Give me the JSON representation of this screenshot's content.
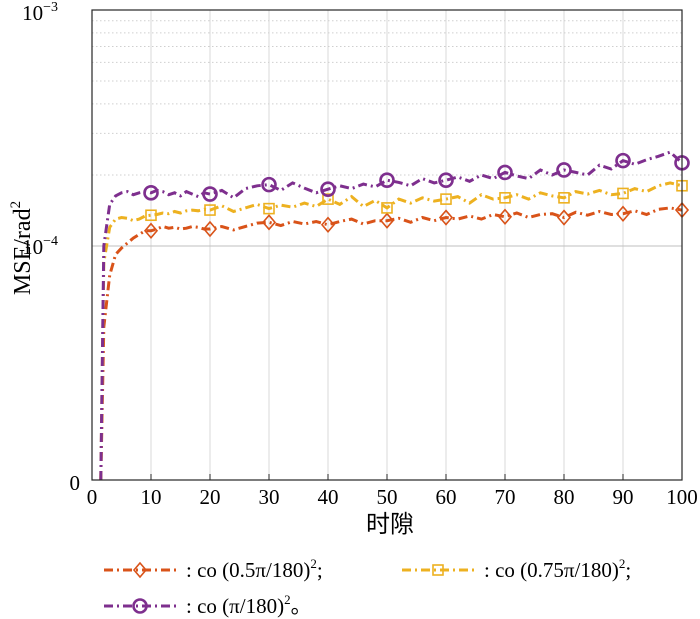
{
  "chart_data": {
    "type": "line",
    "xlabel": "时隙",
    "ylabel": "MSE/rad",
    "ylabel_sup": "2",
    "xlim": [
      0,
      100
    ],
    "ylim_labels": {
      "top_base": "10",
      "top_exp": "−3",
      "mid_base": "10",
      "mid_exp": "−4",
      "bottom": "0"
    },
    "x_ticks": [
      0,
      10,
      20,
      30,
      40,
      50,
      60,
      70,
      80,
      90,
      100
    ],
    "x_tick_labels": [
      "0",
      "10",
      "20",
      "30",
      "40",
      "50",
      "60",
      "70",
      "80",
      "90",
      "100"
    ],
    "grid": true,
    "series": [
      {
        "name": ": co (0.5π/180)",
        "name_sup": "2",
        "name_suffix": ";",
        "color": "#d95319",
        "marker": "diamond",
        "x": [
          1.5,
          2,
          3,
          4,
          5,
          6,
          7,
          8,
          9,
          10,
          11,
          12,
          13,
          14,
          15,
          16,
          17,
          18,
          19,
          20,
          22,
          24,
          26,
          28,
          30,
          32,
          34,
          36,
          38,
          40,
          42,
          44,
          46,
          48,
          50,
          52,
          54,
          56,
          58,
          60,
          62,
          64,
          66,
          68,
          70,
          72,
          74,
          76,
          78,
          80,
          82,
          84,
          86,
          88,
          90,
          92,
          94,
          96,
          98,
          100
        ],
        "y": [
          0,
          4.5e-05,
          7.5e-05,
          9.2e-05,
          9.8e-05,
          0.000103,
          0.000108,
          0.000112,
          0.000116,
          0.000116,
          0.000118,
          0.000121,
          0.000119,
          0.00012,
          0.000118,
          0.000119,
          0.000121,
          0.00012,
          0.000118,
          0.000118,
          0.000121,
          0.000117,
          0.000121,
          0.000125,
          0.000126,
          0.000122,
          0.000127,
          0.000124,
          0.000127,
          0.000123,
          0.000127,
          0.00013,
          0.000124,
          0.000128,
          0.000128,
          0.000131,
          0.000126,
          0.000132,
          0.000128,
          0.000132,
          0.00013,
          0.000134,
          0.00013,
          0.000136,
          0.000133,
          0.000138,
          0.000132,
          0.000136,
          0.000137,
          0.000132,
          0.000139,
          0.000135,
          0.00014,
          0.000136,
          0.000137,
          0.000141,
          0.000136,
          0.000143,
          0.000145,
          0.000142
        ],
        "marker_x": [
          10,
          20,
          30,
          40,
          50,
          60,
          70,
          80,
          90,
          100
        ]
      },
      {
        "name": ": co (0.75π/180)",
        "name_sup": "2",
        "name_suffix": ";",
        "color": "#edb120",
        "marker": "square",
        "x": [
          1.5,
          2,
          3,
          4,
          5,
          6,
          7,
          8,
          9,
          10,
          11,
          12,
          13,
          14,
          15,
          16,
          17,
          18,
          19,
          20,
          22,
          24,
          26,
          28,
          30,
          32,
          34,
          36,
          38,
          40,
          42,
          44,
          46,
          48,
          50,
          52,
          54,
          56,
          58,
          60,
          62,
          64,
          66,
          68,
          70,
          72,
          74,
          76,
          78,
          80,
          82,
          84,
          86,
          88,
          90,
          92,
          94,
          96,
          98,
          100
        ],
        "y": [
          0,
          8.5e-05,
          0.00012,
          0.00013,
          0.000132,
          0.000131,
          0.000128,
          0.00013,
          0.000134,
          0.000135,
          0.000136,
          0.000138,
          0.000137,
          0.00014,
          0.000138,
          0.000141,
          0.000142,
          0.000141,
          0.000143,
          0.000142,
          0.000148,
          0.00014,
          0.000145,
          0.00015,
          0.000144,
          0.000149,
          0.000146,
          0.000152,
          0.000147,
          0.000158,
          0.00015,
          0.000162,
          0.000147,
          0.000156,
          0.000145,
          0.000158,
          0.000152,
          0.00016,
          0.000155,
          0.000158,
          0.000162,
          0.000152,
          0.000165,
          0.000158,
          0.00016,
          0.000165,
          0.000158,
          0.000168,
          0.000163,
          0.00016,
          0.00017,
          0.000166,
          0.000172,
          0.000165,
          0.000167,
          0.000175,
          0.00017,
          0.00018,
          0.000185,
          0.00018
        ],
        "marker_x": [
          10,
          20,
          30,
          40,
          50,
          60,
          70,
          80,
          90,
          100
        ]
      },
      {
        "name": ": co (π/180)",
        "name_sup": "2",
        "name_suffix": "。",
        "color": "#7e2f8e",
        "marker": "circle",
        "x": [
          1.5,
          2,
          3,
          4,
          5,
          6,
          7,
          8,
          9,
          10,
          11,
          12,
          13,
          14,
          15,
          16,
          17,
          18,
          19,
          20,
          22,
          24,
          26,
          28,
          30,
          32,
          34,
          36,
          38,
          40,
          42,
          44,
          46,
          48,
          50,
          52,
          54,
          56,
          58,
          60,
          62,
          64,
          66,
          68,
          70,
          72,
          74,
          76,
          78,
          80,
          82,
          84,
          86,
          88,
          90,
          92,
          94,
          96,
          98,
          100
        ],
        "y": [
          0,
          0.0001,
          0.00015,
          0.000163,
          0.000168,
          0.00017,
          0.000165,
          0.000168,
          0.00017,
          0.000168,
          0.000172,
          0.00017,
          0.000165,
          0.000168,
          0.000163,
          0.00017,
          0.000166,
          0.000162,
          0.000168,
          0.000166,
          0.000172,
          0.00016,
          0.000175,
          0.00018,
          0.000182,
          0.000172,
          0.000185,
          0.000176,
          0.000168,
          0.000174,
          0.00018,
          0.000175,
          0.000183,
          0.000178,
          0.00019,
          0.000186,
          0.00018,
          0.000193,
          0.000185,
          0.00019,
          0.000196,
          0.000188,
          0.0002,
          0.000193,
          0.000205,
          0.000198,
          0.000193,
          0.00021,
          0.0002,
          0.00021,
          0.000205,
          0.0002,
          0.00022,
          0.000212,
          0.00023,
          0.000222,
          0.000232,
          0.00024,
          0.00025,
          0.000225
        ],
        "marker_x": [
          10,
          20,
          30,
          40,
          50,
          60,
          70,
          80,
          90,
          100
        ]
      }
    ],
    "legend_placement": "bottom"
  }
}
